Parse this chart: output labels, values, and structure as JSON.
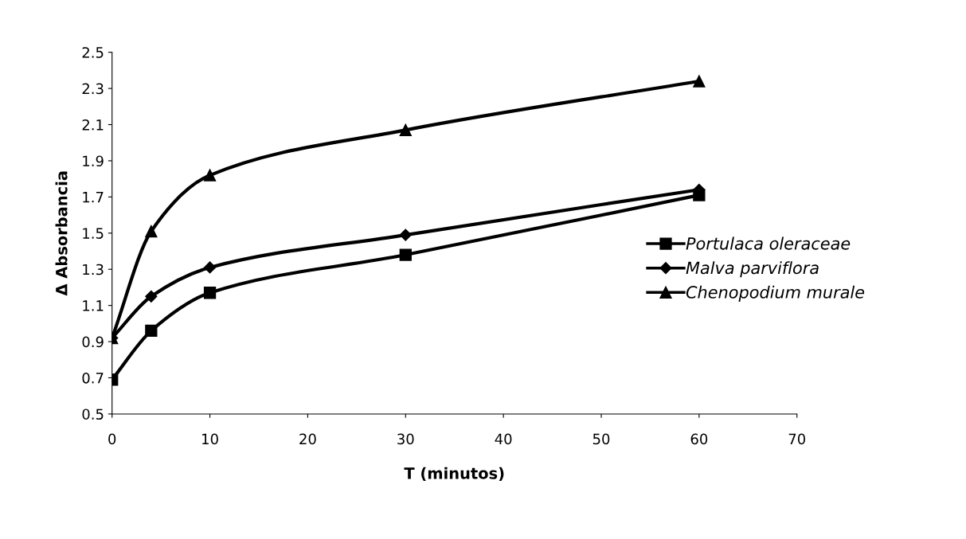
{
  "chart_data": {
    "type": "line",
    "xlabel": "T (minutos)",
    "ylabel": "Δ Absorbancia",
    "x": [
      0,
      4,
      10,
      30,
      60
    ],
    "series": [
      {
        "name": "Portulaca oleraceae",
        "color": "#000000",
        "marker": "square",
        "values": [
          0.69,
          0.96,
          1.17,
          1.38,
          1.71
        ]
      },
      {
        "name": "Malva parviflora",
        "color": "#000000",
        "marker": "diamond",
        "values": [
          0.92,
          1.15,
          1.31,
          1.49,
          1.74
        ]
      },
      {
        "name": "Chenopodium murale",
        "color": "#000000",
        "marker": "triangle",
        "values": [
          0.92,
          1.51,
          1.82,
          2.07,
          2.34
        ]
      }
    ],
    "xlim": [
      0,
      70
    ],
    "xticks": [
      0,
      10,
      20,
      30,
      40,
      50,
      60,
      70
    ],
    "ylim": [
      0.5,
      2.5
    ],
    "yticks": [
      0.5,
      0.7,
      0.9,
      1.1,
      1.3,
      1.5,
      1.7,
      1.9,
      2.1,
      2.3,
      2.5
    ],
    "grid": false,
    "legend": "right",
    "line_style": "solid"
  }
}
